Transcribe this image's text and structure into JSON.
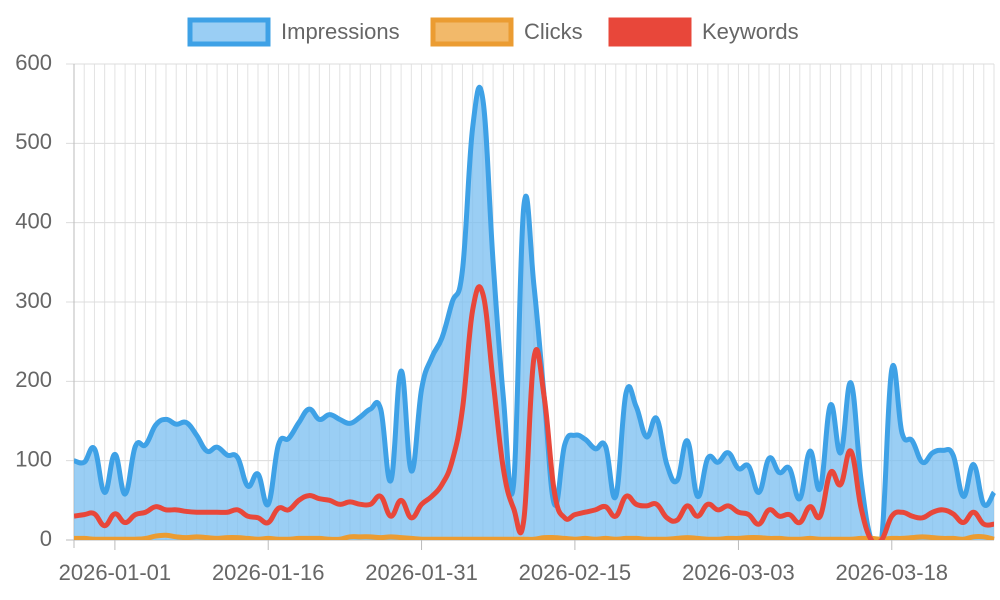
{
  "chart_data": {
    "type": "line",
    "x": [
      "2025-12-28",
      "2025-12-29",
      "2025-12-30",
      "2025-12-31",
      "2026-01-01",
      "2026-01-02",
      "2026-01-03",
      "2026-01-04",
      "2026-01-05",
      "2026-01-06",
      "2026-01-07",
      "2026-01-08",
      "2026-01-09",
      "2026-01-10",
      "2026-01-11",
      "2026-01-12",
      "2026-01-13",
      "2026-01-14",
      "2026-01-15",
      "2026-01-16",
      "2026-01-17",
      "2026-01-18",
      "2026-01-19",
      "2026-01-20",
      "2026-01-21",
      "2026-01-22",
      "2026-01-23",
      "2026-01-24",
      "2026-01-25",
      "2026-01-26",
      "2026-01-27",
      "2026-01-28",
      "2026-01-29",
      "2026-01-30",
      "2026-01-31",
      "2026-02-01",
      "2026-02-02",
      "2026-02-03",
      "2026-02-04",
      "2026-02-05",
      "2026-02-06",
      "2026-02-07",
      "2026-02-08",
      "2026-02-09",
      "2026-02-10",
      "2026-02-11",
      "2026-02-12",
      "2026-02-13",
      "2026-02-14",
      "2026-02-15",
      "2026-02-16",
      "2026-02-17",
      "2026-02-18",
      "2026-02-19",
      "2026-02-20",
      "2026-02-21",
      "2026-02-22",
      "2026-02-23",
      "2026-02-24",
      "2026-02-25",
      "2026-02-26",
      "2026-02-27",
      "2026-02-28",
      "2026-03-01",
      "2026-03-02",
      "2026-03-03",
      "2026-03-04",
      "2026-03-05",
      "2026-03-06",
      "2026-03-07",
      "2026-03-08",
      "2026-03-09",
      "2026-03-10",
      "2026-03-11",
      "2026-03-12",
      "2026-03-13",
      "2026-03-14",
      "2026-03-15",
      "2026-03-16",
      "2026-03-17",
      "2026-03-18",
      "2026-03-19",
      "2026-03-20",
      "2026-03-21",
      "2026-03-22",
      "2026-03-23",
      "2026-03-24",
      "2026-03-25",
      "2026-03-26",
      "2026-03-27",
      "2026-03-28"
    ],
    "series": [
      {
        "name": "Impressions",
        "color": "#3ea1e6",
        "fill": "rgba(120,190,240,0.75)",
        "values": [
          100,
          98,
          115,
          60,
          108,
          58,
          118,
          120,
          145,
          152,
          146,
          148,
          132,
          112,
          117,
          107,
          104,
          68,
          83,
          45,
          120,
          128,
          148,
          165,
          152,
          158,
          152,
          147,
          155,
          165,
          165,
          75,
          213,
          87,
          190,
          230,
          255,
          300,
          340,
          520,
          555,
          350,
          180,
          70,
          420,
          320,
          180,
          45,
          120,
          132,
          127,
          115,
          118,
          55,
          185,
          168,
          130,
          153,
          95,
          75,
          125,
          55,
          103,
          98,
          110,
          90,
          93,
          60,
          103,
          85,
          90,
          52,
          112,
          65,
          170,
          110,
          198,
          75,
          0,
          0,
          215,
          135,
          125,
          98,
          110,
          113,
          107,
          55,
          95,
          45,
          60
        ]
      },
      {
        "name": "Clicks",
        "color": "#eb9c32",
        "fill": "#f2b96a",
        "values": [
          2,
          2,
          1,
          1,
          1,
          1,
          1,
          2,
          5,
          6,
          4,
          3,
          4,
          3,
          2,
          3,
          3,
          2,
          1,
          2,
          1,
          1,
          2,
          2,
          2,
          1,
          1,
          4,
          4,
          4,
          3,
          4,
          3,
          2,
          1,
          1,
          1,
          1,
          1,
          1,
          1,
          1,
          1,
          1,
          1,
          1,
          3,
          3,
          2,
          1,
          2,
          1,
          2,
          1,
          2,
          2,
          1,
          1,
          1,
          2,
          3,
          2,
          1,
          1,
          2,
          2,
          3,
          3,
          2,
          2,
          1,
          1,
          2,
          1,
          1,
          1,
          1,
          2,
          2,
          1,
          2,
          2,
          3,
          4,
          3,
          2,
          2,
          1,
          4,
          4,
          1
        ]
      },
      {
        "name": "Keywords",
        "color": "#e8473a",
        "fill": "#e8473a",
        "values": [
          30,
          32,
          33,
          18,
          33,
          22,
          32,
          35,
          42,
          38,
          38,
          36,
          35,
          35,
          35,
          35,
          38,
          30,
          28,
          22,
          40,
          38,
          50,
          56,
          52,
          50,
          45,
          48,
          45,
          45,
          55,
          30,
          50,
          28,
          45,
          55,
          70,
          100,
          165,
          290,
          310,
          200,
          90,
          40,
          25,
          230,
          180,
          60,
          28,
          32,
          35,
          38,
          42,
          30,
          55,
          45,
          43,
          45,
          28,
          25,
          43,
          30,
          45,
          38,
          43,
          35,
          32,
          20,
          38,
          30,
          32,
          22,
          42,
          30,
          85,
          70,
          112,
          40,
          0,
          0,
          30,
          35,
          30,
          28,
          35,
          38,
          33,
          22,
          35,
          20,
          20
        ]
      }
    ],
    "xticks": [
      "2026-01-01",
      "2026-01-16",
      "2026-01-31",
      "2026-02-15",
      "2026-03-03",
      "2026-03-18"
    ],
    "ylim": [
      0,
      600
    ],
    "yticks": [
      0,
      100,
      200,
      300,
      400,
      500,
      600
    ],
    "grid": true,
    "legend": "top"
  }
}
